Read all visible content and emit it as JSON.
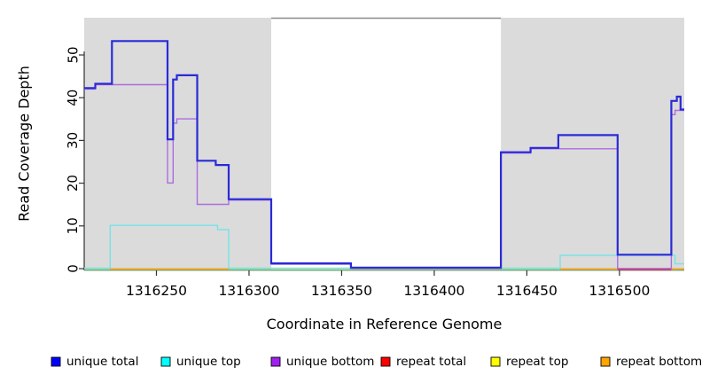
{
  "chart": {
    "xlabel": "Coordinate in Reference Genome",
    "ylabel": "Read Coverage Depth",
    "xticks": [
      1316250,
      1316300,
      1316350,
      1316400,
      1316450,
      1316500
    ],
    "yticks": [
      0,
      10,
      20,
      30,
      40,
      50
    ],
    "panel_color": "#DBDBDB",
    "white_gap": [
      1316312,
      1316436
    ],
    "gap_border_color": "#8A8A8A",
    "axis_color": "#333333",
    "tick_label_color": "#000000"
  },
  "chart_data": {
    "type": "line",
    "subtype": "step-after",
    "title": "",
    "xlabel": "Coordinate in Reference Genome",
    "ylabel": "Read Coverage Depth",
    "xlim": [
      1316211,
      1316535
    ],
    "ylim": [
      0,
      58
    ],
    "grid": false,
    "legend_position": "bottom",
    "shaded_x_regions": [
      [
        1316211,
        1316312
      ],
      [
        1316436,
        1316535
      ]
    ],
    "series": [
      {
        "name": "unique total",
        "legend_color": "#0000FF",
        "line_color": "#2A2AD8",
        "width": 2.2,
        "offset": -1.2,
        "z": 6,
        "steps": [
          [
            1316211,
            42
          ],
          [
            1316217,
            43
          ],
          [
            1316226,
            53
          ],
          [
            1316256,
            30
          ],
          [
            1316259,
            44
          ],
          [
            1316261,
            45
          ],
          [
            1316272,
            25
          ],
          [
            1316282,
            24
          ],
          [
            1316289,
            16
          ],
          [
            1316312,
            1
          ],
          [
            1316355,
            0
          ],
          [
            1316436,
            27
          ],
          [
            1316452,
            28
          ],
          [
            1316467,
            31
          ],
          [
            1316499,
            3
          ],
          [
            1316528,
            39
          ],
          [
            1316531,
            40
          ],
          [
            1316533,
            37
          ]
        ]
      },
      {
        "name": "unique top",
        "legend_color": "#00FFFF",
        "line_color": "#76E3E8",
        "width": 1.4,
        "offset": -0.6,
        "z": 1,
        "steps": [
          [
            1316211,
            0
          ],
          [
            1316225,
            10
          ],
          [
            1316283,
            9
          ],
          [
            1316289,
            0
          ],
          [
            1316468,
            3
          ],
          [
            1316530,
            1
          ]
        ]
      },
      {
        "name": "unique bottom",
        "legend_color": "#A020F0",
        "line_color": "#AC6CE2",
        "width": 1.4,
        "offset": -0.2,
        "z": 5,
        "steps": [
          [
            1316211,
            42
          ],
          [
            1316217,
            43
          ],
          [
            1316256,
            20
          ],
          [
            1316259,
            34
          ],
          [
            1316261,
            35
          ],
          [
            1316272,
            15
          ],
          [
            1316289,
            16
          ],
          [
            1316312,
            1
          ],
          [
            1316355,
            0
          ],
          [
            1316436,
            27
          ],
          [
            1316452,
            28
          ],
          [
            1316499,
            0
          ],
          [
            1316528,
            36
          ],
          [
            1316530,
            37
          ]
        ]
      },
      {
        "name": "repeat total",
        "legend_color": "#FF0000",
        "line_color": "#CC3350",
        "width": 1.3,
        "offset": 1.2,
        "z": 3,
        "steps": [
          [
            1316211,
            0
          ]
        ],
        "visible_segments": [
          [
            1316499,
            1316528
          ]
        ]
      },
      {
        "name": "repeat top",
        "legend_color": "#FFFF00",
        "line_color": "#69C169",
        "width": 1.4,
        "offset": 1.3,
        "z": 2,
        "steps": [
          [
            1316211,
            0
          ]
        ],
        "visible_segments": [
          [
            1316211,
            1316535
          ]
        ]
      },
      {
        "name": "repeat bottom",
        "legend_color": "#FFA500",
        "line_color": "#FF9912",
        "width": 1.6,
        "offset": 0.4,
        "z": 4,
        "steps": [
          [
            1316211,
            0
          ]
        ],
        "visible_segments": [
          [
            1316225,
            1316289
          ],
          [
            1316468,
            1316499
          ],
          [
            1316528,
            1316535
          ]
        ]
      }
    ]
  },
  "legend": {
    "items": [
      {
        "label": "unique total",
        "color": "#0000FF"
      },
      {
        "label": "unique top",
        "color": "#00FFFF"
      },
      {
        "label": "unique bottom",
        "color": "#A020F0"
      },
      {
        "label": "repeat total",
        "color": "#FF0000"
      },
      {
        "label": "repeat top",
        "color": "#FFFF00"
      },
      {
        "label": "repeat bottom",
        "color": "#FFA500"
      }
    ]
  }
}
